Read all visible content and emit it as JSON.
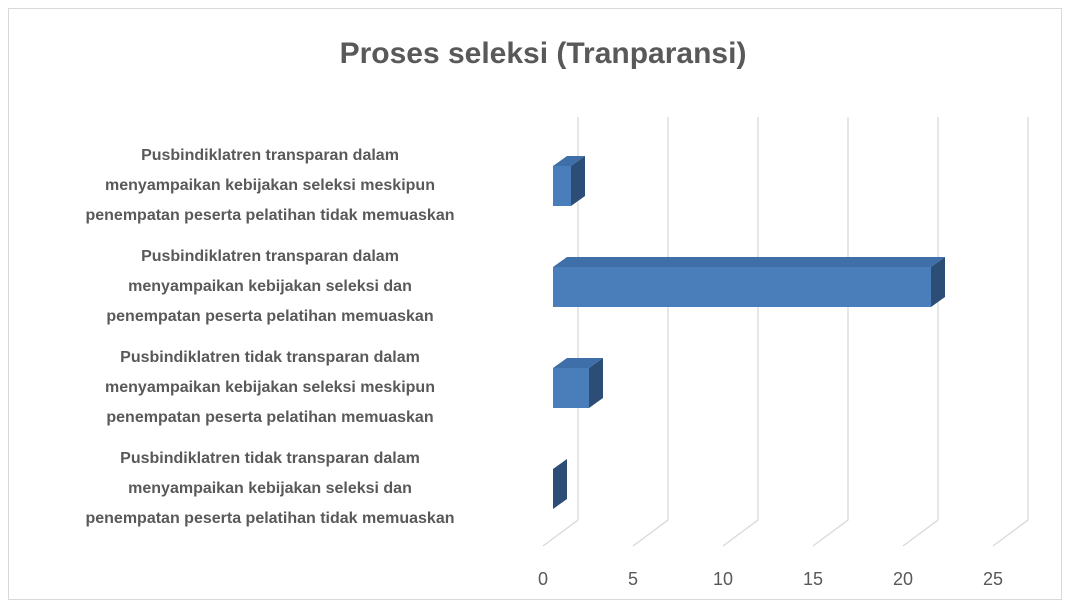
{
  "chart_data": {
    "type": "bar3d_horizontal",
    "title": "Proses seleksi (Tranparansi)",
    "categories": [
      "Pusbindiklatren transparan dalam\nmenyampaikan kebijakan seleksi meskipun\npenempatan peserta pelatihan tidak memuaskan",
      "Pusbindiklatren transparan dalam\nmenyampaikan kebijakan seleksi dan\npenempatan peserta pelatihan memuaskan",
      "Pusbindiklatren tidak transparan dalam\nmenyampaikan kebijakan seleksi meskipun\npenempatan peserta pelatihan memuaskan",
      "Pusbindiklatren tidak transparan dalam\nmenyampaikan kebijakan seleksi dan\npenempatan peserta pelatihan tidak memuaskan"
    ],
    "values": [
      1,
      21,
      2,
      0
    ],
    "color": "#4a7ebb",
    "xlim": [
      0,
      25
    ],
    "xticks": [
      0,
      5,
      10,
      15,
      20,
      25
    ],
    "grid": true
  }
}
